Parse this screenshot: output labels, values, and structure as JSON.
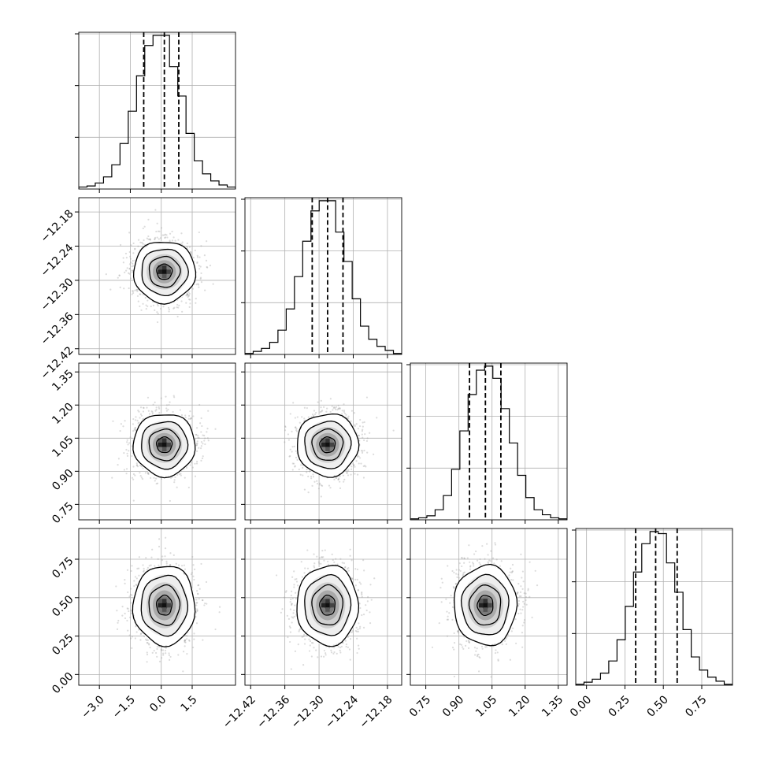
{
  "chart_data": {
    "type": "corner",
    "n_params": 4,
    "grid": true,
    "params": [
      {
        "range": [
          -4.0,
          3.6
        ],
        "ticks": [
          -3.0,
          -1.5,
          0.0,
          1.5
        ],
        "tick_labels": [
          "−3.0",
          "−1.5",
          "0.0",
          "1.5"
        ],
        "median": 0.15,
        "q16": -0.85,
        "q84": 0.85,
        "std": 0.75
      },
      {
        "range": [
          -12.43,
          -12.155
        ],
        "ticks": [
          -12.42,
          -12.36,
          -12.3,
          -12.24,
          -12.18
        ],
        "tick_labels": [
          "−12.42",
          "−12.36",
          "−12.30",
          "−12.24",
          "−12.18"
        ],
        "median": -12.285,
        "q16": -12.312,
        "q84": -12.258,
        "std": 0.027
      },
      {
        "range": [
          0.68,
          1.39
        ],
        "ticks": [
          0.75,
          0.9,
          1.05,
          1.2,
          1.35
        ],
        "tick_labels": [
          "0.75",
          "0.90",
          "1.05",
          "1.20",
          "1.35"
        ],
        "median": 1.02,
        "q16": 0.948,
        "q84": 1.09,
        "std": 0.071
      },
      {
        "range": [
          -0.07,
          0.95
        ],
        "ticks": [
          0.0,
          0.25,
          0.5,
          0.75
        ],
        "tick_labels": [
          "0.00",
          "0.25",
          "0.50",
          "0.75"
        ],
        "median": 0.45,
        "q16": 0.32,
        "q84": 0.59,
        "std": 0.13
      }
    ],
    "hist_counts": [
      [
        2,
        3,
        6,
        12,
        24,
        45,
        77,
        112,
        142,
        152,
        152,
        121,
        92,
        55,
        28,
        15,
        8,
        4,
        2
      ],
      [
        1,
        3,
        6,
        12,
        24,
        45,
        77,
        112,
        142,
        152,
        152,
        121,
        92,
        55,
        28,
        15,
        8,
        4,
        1
      ],
      [
        1,
        2,
        4,
        10,
        24,
        50,
        88,
        124,
        148,
        152,
        140,
        110,
        76,
        44,
        22,
        10,
        5,
        2,
        1
      ],
      [
        1,
        3,
        6,
        12,
        24,
        45,
        78,
        112,
        140,
        152,
        150,
        121,
        92,
        55,
        28,
        15,
        8,
        4,
        1
      ]
    ]
  }
}
